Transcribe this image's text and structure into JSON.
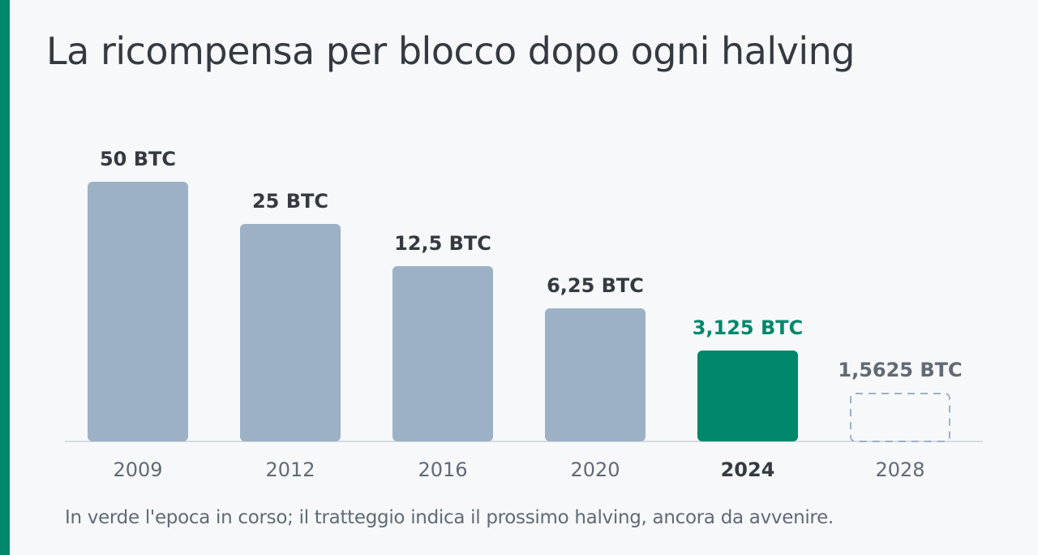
{
  "title": "La ricompensa per blocco dopo ogni halving",
  "footnote": "In verde l'epoca in corso; il tratteggio indica il prossimo halving, ancora da avvenire.",
  "colors": {
    "accent": "#00876c",
    "bar": "#9db1c6",
    "future_outline": "#9db1c6",
    "baseline": "#d6dbe0",
    "text_dark": "#353a41",
    "text_muted": "#616a75"
  },
  "chart_data": {
    "type": "bar",
    "categories": [
      "2009",
      "2012",
      "2016",
      "2020",
      "2024",
      "2028"
    ],
    "values": [
      50,
      25,
      12.5,
      6.25,
      3.125,
      1.5625
    ],
    "value_labels": [
      "50 BTC",
      "25 BTC",
      "12,5 BTC",
      "6,25 BTC",
      "3,125 BTC",
      "1,5625 BTC"
    ],
    "unit": "BTC",
    "scale": "log2",
    "current_index": 4,
    "future_index": 5,
    "title": "La ricompensa per blocco dopo ogni halving",
    "xlabel": "",
    "ylabel": "",
    "grid": false,
    "legend": "none"
  }
}
